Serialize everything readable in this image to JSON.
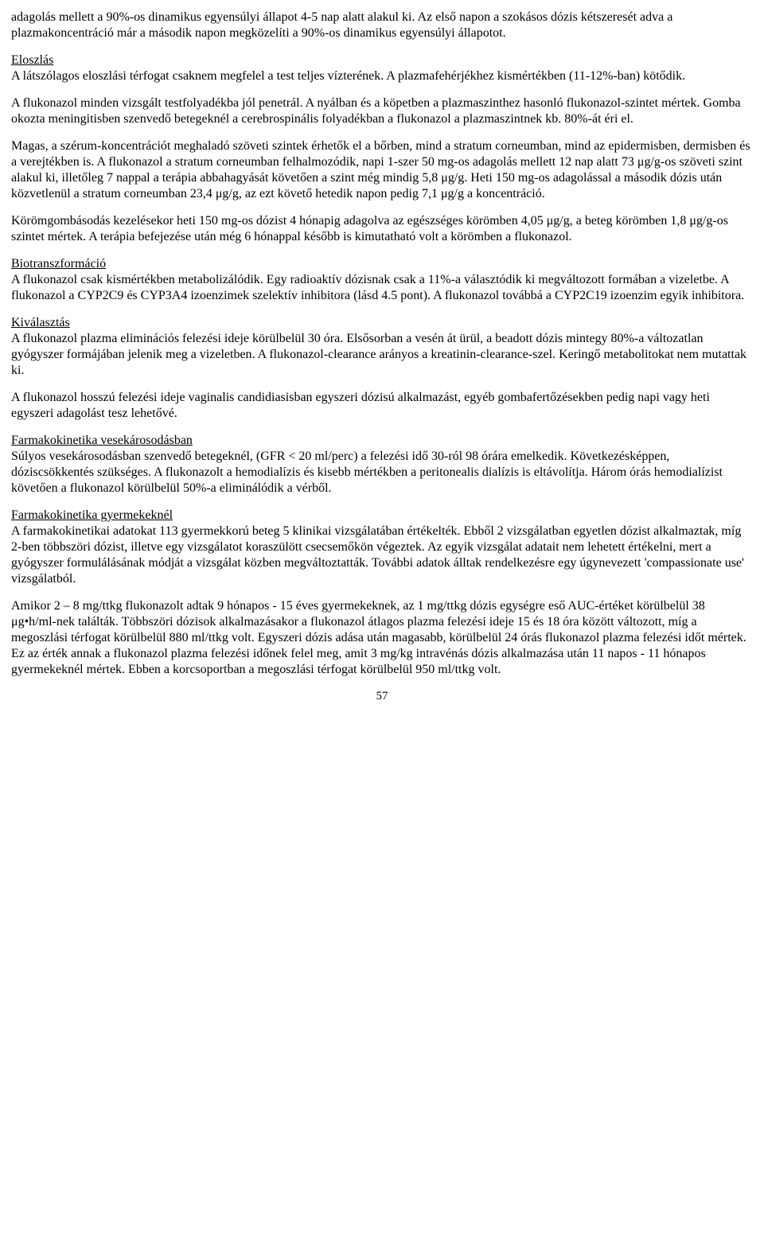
{
  "paragraphs": {
    "p1": "adagolás mellett a 90%-os dinamikus egyensúlyi állapot 4-5 nap alatt alakul ki. Az első napon a szokásos dózis kétszeresét adva a plazmakoncentráció már a második napon megközelíti a 90%-os dinamikus egyensúlyi állapotot.",
    "h_eloszlas": "Eloszlás",
    "p2": "A látszólagos eloszlási térfogat csaknem megfelel a test teljes vízterének. A plazmafehérjékhez kismértékben (11-12%-ban) kötődik.",
    "p3": "A flukonazol minden vizsgált testfolyadékba jól penetrál. A nyálban és a köpetben a plazmaszinthez hasonló flukonazol-szintet mértek. Gomba okozta meningitisben szenvedő betegeknél a cerebrospinális folyadékban a flukonazol a plazmaszintnek kb. 80%-át éri el.",
    "p4": "Magas, a szérum-koncentrációt meghaladó szöveti szintek érhetők el a bőrben, mind a stratum corneumban, mind az epidermisben, dermisben és a verejtékben is. A flukonazol a stratum corneumban felhalmozódik, napi 1-szer 50 mg-os adagolás mellett 12 nap alatt 73 μg/g-os szöveti szint alakul ki, illetőleg 7 nappal a terápia abbahagyását követően a szint még mindig 5,8 μg/g. Heti 150 mg-os adagolással a második dózis után közvetlenül a stratum corneumban 23,4 μg/g, az ezt követő hetedik napon pedig 7,1 μg/g a koncentráció.",
    "p5": "Körömgombásodás kezelésekor heti 150 mg-os dózist 4 hónapig adagolva az egészséges körömben 4,05 μg/g, a beteg körömben 1,8 μg/g-os szintet mértek. A terápia befejezése után még 6 hónappal később is kimutatható volt a körömben a flukonazol.",
    "h_biotr": "Biotranszformáció",
    "p6": "A flukonazol csak kismértékben metabolizálódik. Egy radioaktív dózisnak csak a 11%-a választódik ki megváltozott formában a vizeletbe. A flukonazol a CYP2C9 és CYP3A4 izoenzimek szelektív inhibitora (lásd 4.5 pont). A flukonazol továbbá a CYP2C19 izoenzim egyik inhibitora.",
    "h_kival": "Kiválasztás",
    "p7": "A flukonazol plazma eliminációs felezési ideje körülbelül 30 óra. Elsősorban a vesén át ürül, a beadott dózis mintegy 80%-a változatlan gyógyszer formájában jelenik meg a vizeletben. A flukonazol-clearance arányos a kreatinin-clearance-szel. Keringő metabolitokat nem mutattak ki.",
    "p8": "A flukonazol hosszú felezési ideje vaginalis candidiasisban egyszeri dózisú alkalmazást, egyéb gombafertőzésekben pedig napi vagy heti egyszeri adagolást tesz lehetővé.",
    "h_vese": "Farmakokinetika vesekárosodásban",
    "p9": "Súlyos vesekárosodásban szenvedő betegeknél, (GFR < 20 ml/perc) a felezési idő 30-ról 98 órára emelkedik. Következésképpen, dóziscsökkentés szükséges. A flukonazolt a hemodialízis és kisebb mértékben a peritonealis dialízis is eltávolítja. Három órás hemodialízist követően a flukonazol körülbelül 50%-a eliminálódik a vérből.",
    "h_gyerm": "Farmakokinetika gyermekeknél",
    "p10": "A farmakokinetikai adatokat 113 gyermekkorú beteg 5 klinikai vizsgálatában értékelték. Ebből 2 vizsgálatban egyetlen dózist alkalmaztak, míg 2-ben többszöri dózist, illetve egy vizsgálatot koraszülött csecsemőkön végeztek. Az egyik vizsgálat adatait nem lehetett értékelni, mert a gyógyszer formulálásának módját a vizsgálat közben megváltoztatták. További adatok álltak rendelkezésre egy úgynevezett 'compassionate use' vizsgálatból.",
    "p11": "Amikor 2 – 8 mg/ttkg flukonazolt adtak 9 hónapos - 15 éves gyermekeknek, az 1 mg/ttkg dózis egységre eső AUC-értéket körülbelül 38 μg•h/ml-nek találták. Többszöri dózisok alkalmazásakor a flukonazol átlagos plazma felezési ideje 15 és 18 óra között változott, míg a megoszlási térfogat körülbelül 880 ml/ttkg volt. Egyszeri dózis adása után magasabb, körülbelül 24 órás flukonazol plazma felezési időt mértek. Ez az érték annak a flukonazol plazma felezési időnek felel meg, amit 3 mg/kg intravénás dózis alkalmazása után 11 napos - 11 hónapos gyermekeknél mértek. Ebben a korcsoportban a megoszlási térfogat körülbelül 950 ml/ttkg volt.",
    "page_number": "57"
  }
}
